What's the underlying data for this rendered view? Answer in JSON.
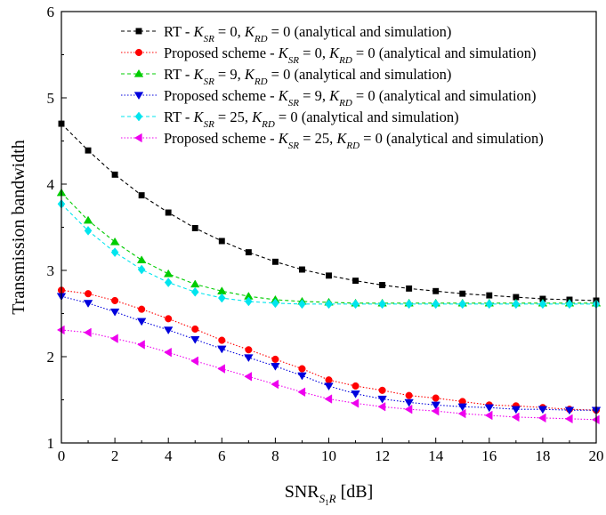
{
  "chart_data": {
    "type": "line",
    "xlabel": "SNR",
    "xlabel_subscript": "S",
    "xlabel_sub2": "1",
    "xlabel_after_sub": "R",
    "xlabel_unit": " [dB]",
    "ylabel": "Transmission bandwidth",
    "xlim": [
      0,
      20
    ],
    "ylim": [
      1,
      6
    ],
    "x_ticks": [
      "0",
      "2",
      "4",
      "6",
      "8",
      "10",
      "12",
      "14",
      "16",
      "18",
      "20"
    ],
    "y_ticks": [
      "1",
      "2",
      "3",
      "4",
      "5",
      "6"
    ],
    "grid": false,
    "legend_position": "top-right",
    "x": [
      0,
      1,
      2,
      3,
      4,
      5,
      6,
      7,
      8,
      9,
      10,
      11,
      12,
      13,
      14,
      15,
      16,
      17,
      18,
      19,
      20
    ],
    "series": [
      {
        "label_prefix": "RT - ",
        "k_sr_value": "0",
        "k_rd_value": "0",
        "label_suffix": "(analytical and simulation)",
        "color": "#000000",
        "marker": "square",
        "values": [
          4.7,
          4.39,
          4.11,
          3.87,
          3.67,
          3.49,
          3.34,
          3.21,
          3.1,
          3.01,
          2.94,
          2.88,
          2.83,
          2.79,
          2.76,
          2.73,
          2.71,
          2.69,
          2.67,
          2.66,
          2.65
        ]
      },
      {
        "label_prefix": "Proposed scheme - ",
        "k_sr_value": "0",
        "k_rd_value": "0",
        "label_suffix": "(analytical and simulation)",
        "color": "#ff0000",
        "marker": "circle",
        "values": [
          2.77,
          2.73,
          2.65,
          2.55,
          2.44,
          2.32,
          2.19,
          2.08,
          1.97,
          1.86,
          1.73,
          1.66,
          1.61,
          1.55,
          1.52,
          1.48,
          1.44,
          1.43,
          1.41,
          1.39,
          1.38
        ]
      },
      {
        "label_prefix": "RT - ",
        "k_sr_value": "9",
        "k_rd_value": "0",
        "label_suffix": "(analytical and simulation)",
        "color": "#00cc00",
        "marker": "triangle-up",
        "values": [
          3.9,
          3.58,
          3.33,
          3.12,
          2.96,
          2.84,
          2.76,
          2.7,
          2.66,
          2.64,
          2.63,
          2.62,
          2.62,
          2.62,
          2.62,
          2.62,
          2.62,
          2.62,
          2.62,
          2.62,
          2.62
        ]
      },
      {
        "label_prefix": "Proposed scheme - ",
        "k_sr_value": "9",
        "k_rd_value": "0",
        "label_suffix": "(analytical and simulation)",
        "color": "#0000dd",
        "marker": "triangle-down",
        "values": [
          2.7,
          2.62,
          2.52,
          2.41,
          2.31,
          2.2,
          2.09,
          1.99,
          1.89,
          1.78,
          1.66,
          1.57,
          1.51,
          1.47,
          1.44,
          1.42,
          1.41,
          1.39,
          1.39,
          1.38,
          1.38
        ]
      },
      {
        "label_prefix": "RT - ",
        "k_sr_value": "25",
        "k_rd_value": "0",
        "label_suffix": "(analytical and simulation)",
        "color": "#00e5ee",
        "marker": "diamond",
        "values": [
          3.77,
          3.46,
          3.21,
          3.01,
          2.86,
          2.75,
          2.68,
          2.64,
          2.62,
          2.61,
          2.61,
          2.61,
          2.61,
          2.61,
          2.61,
          2.61,
          2.61,
          2.61,
          2.61,
          2.61,
          2.61
        ]
      },
      {
        "label_prefix": "Proposed scheme - ",
        "k_sr_value": "25",
        "k_rd_value": "0",
        "label_suffix": "(analytical and simulation)",
        "color": "#ee00ee",
        "marker": "triangle-left",
        "values": [
          2.31,
          2.28,
          2.21,
          2.14,
          2.05,
          1.95,
          1.86,
          1.77,
          1.68,
          1.59,
          1.51,
          1.46,
          1.42,
          1.39,
          1.37,
          1.34,
          1.32,
          1.3,
          1.29,
          1.28,
          1.27
        ]
      }
    ]
  }
}
